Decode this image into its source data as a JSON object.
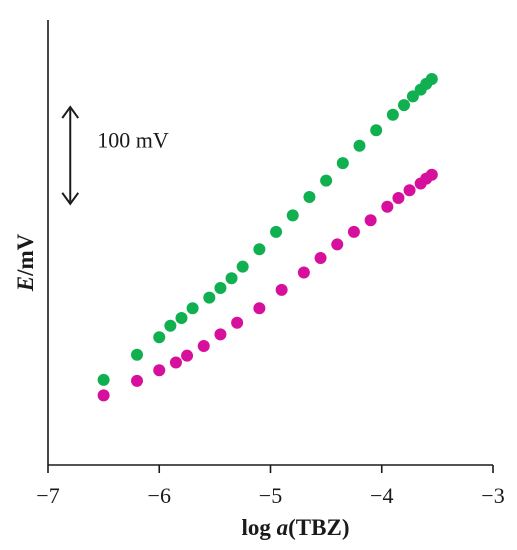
{
  "chart_data": {
    "type": "scatter",
    "title": "",
    "xlabel": {
      "prefix": "log ",
      "italic": "a",
      "suffix": "(TBZ)"
    },
    "ylabel": {
      "italic": "E",
      "suffix": "/mV"
    },
    "xlim": [
      -7,
      -3
    ],
    "ylim": [
      0,
      460
    ],
    "x_ticks": [
      -7,
      -6,
      -5,
      -4,
      -3
    ],
    "x_tick_labels": [
      "−7",
      "−6",
      "−5",
      "−4",
      "−3"
    ],
    "y_ticks_shown": false,
    "grid": false,
    "legend": "none",
    "scale_bar": {
      "label": "100 mV",
      "value": 100,
      "x": -6.8,
      "y_bottom": 270
    },
    "series": [
      {
        "color": "#10b050",
        "x": [
          -6.5,
          -6.2,
          -6.0,
          -5.9,
          -5.8,
          -5.7,
          -5.55,
          -5.45,
          -5.35,
          -5.25,
          -5.1,
          -4.95,
          -4.8,
          -4.65,
          -4.5,
          -4.35,
          -4.2,
          -4.05,
          -3.9,
          -3.8,
          -3.72,
          -3.65,
          -3.6,
          -3.55
        ],
        "y": [
          88,
          114,
          132,
          144,
          152,
          162,
          173,
          183,
          193,
          205,
          223,
          241,
          258,
          277,
          294,
          312,
          330,
          346,
          362,
          372,
          381,
          388,
          394,
          399
        ]
      },
      {
        "color": "#d6109c",
        "x": [
          -6.5,
          -6.2,
          -6.0,
          -5.85,
          -5.75,
          -5.6,
          -5.45,
          -5.3,
          -5.1,
          -4.9,
          -4.7,
          -4.55,
          -4.4,
          -4.25,
          -4.1,
          -3.95,
          -3.85,
          -3.75,
          -3.65,
          -3.6,
          -3.55
        ],
        "y": [
          72,
          87,
          98,
          106,
          113,
          123,
          135,
          147,
          162,
          181,
          199,
          214,
          228,
          241,
          253,
          267,
          276,
          284,
          291,
          296,
          300
        ]
      }
    ]
  }
}
